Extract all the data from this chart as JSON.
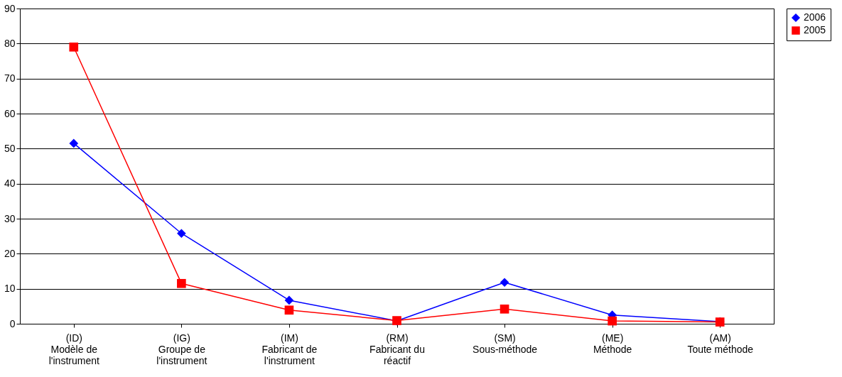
{
  "chart_data": {
    "type": "line",
    "categories": [
      "(ID)\nModèle de\nl'instrument",
      "(IG)\nGroupe de\nl'instrument",
      "(IM)\nFabricant de\nl'instrument",
      "(RM)\nFabricant du\nréactif",
      "(SM)\nSous-méthode",
      "(ME)\nMéthode",
      "(AM)\nToute méthode"
    ],
    "series": [
      {
        "name": "2006",
        "color": "#0000ff",
        "marker": "diamond",
        "values": [
          51.5,
          25.8,
          6.7,
          0.8,
          11.8,
          2.5,
          0.6
        ]
      },
      {
        "name": "2005",
        "color": "#ff0000",
        "marker": "square",
        "values": [
          79,
          11.5,
          3.9,
          0.9,
          4.2,
          0.8,
          0.5
        ]
      }
    ],
    "ylim": [
      0,
      90
    ],
    "yticks": [
      0,
      10,
      20,
      30,
      40,
      50,
      60,
      70,
      80,
      90
    ],
    "grid": "y",
    "legend": "right",
    "line_style": "solid"
  }
}
